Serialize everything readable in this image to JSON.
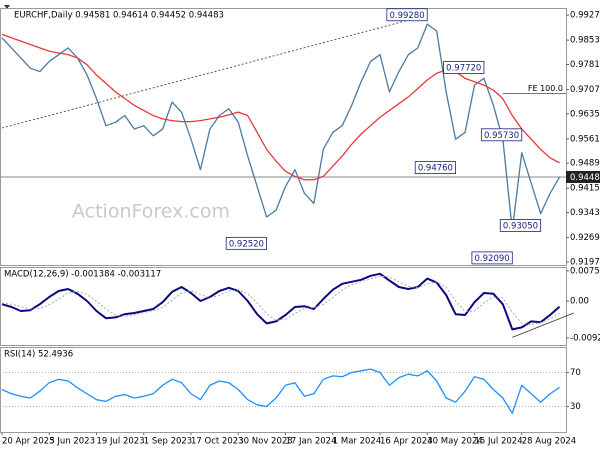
{
  "chart_data": [
    {
      "type": "line",
      "title": "EURCHF,Daily 0.94581 0.94614 0.94452 0.94483",
      "watermark": "ActionForex.com",
      "categories": [
        "20 Apr 2023",
        null,
        null,
        null,
        null,
        "5 Jun 2023",
        null,
        null,
        null,
        null,
        "19 Jul 2023",
        null,
        null,
        null,
        null,
        "1 Sep 2023",
        null,
        null,
        null,
        null,
        "17 Oct 2023",
        null,
        null,
        null,
        null,
        "30 Nov 2023",
        null,
        null,
        null,
        null,
        "17 Jan 2024",
        null,
        null,
        null,
        null,
        "1 Mar 2024",
        null,
        null,
        null,
        null,
        "16 Apr 2024",
        null,
        null,
        null,
        null,
        "30 May 2024",
        null,
        null,
        null,
        null,
        "15 Jul 2024",
        null,
        null,
        null,
        null,
        "28 Aug 2024",
        null,
        null,
        null,
        null
      ],
      "series": [
        {
          "color": "#4a7aa0",
          "values": [
            0.986,
            0.983,
            0.98,
            0.977,
            0.976,
            0.979,
            0.981,
            0.983,
            0.98,
            0.975,
            0.968,
            0.96,
            0.961,
            0.963,
            0.959,
            0.96,
            0.957,
            0.959,
            0.967,
            0.964,
            0.956,
            0.947,
            0.959,
            0.963,
            0.965,
            0.961,
            0.951,
            0.942,
            0.933,
            0.935,
            0.942,
            0.947,
            0.94,
            0.937,
            0.953,
            0.958,
            0.96,
            0.966,
            0.973,
            0.979,
            0.981,
            0.97,
            0.976,
            0.981,
            0.983,
            0.99,
            0.988,
            0.97,
            0.956,
            0.958,
            0.972,
            0.974,
            0.966,
            0.956,
            0.929,
            0.952,
            0.943,
            0.934,
            0.94,
            0.9448
          ]
        },
        {
          "color": "#e8383d",
          "values": [
            0.987,
            0.986,
            0.985,
            0.984,
            0.983,
            0.982,
            0.9815,
            0.981,
            0.98,
            0.978,
            0.975,
            0.9725,
            0.97,
            0.968,
            0.966,
            0.9645,
            0.963,
            0.962,
            0.9615,
            0.9612,
            0.9612,
            0.9615,
            0.962,
            0.9625,
            0.9632,
            0.964,
            0.963,
            0.958,
            0.953,
            0.9495,
            0.9465,
            0.945,
            0.944,
            0.944,
            0.945,
            0.948,
            0.951,
            0.9545,
            0.9575,
            0.96,
            0.9625,
            0.9645,
            0.9665,
            0.9685,
            0.971,
            0.9735,
            0.9755,
            0.9765,
            0.976,
            0.974,
            0.973,
            0.972,
            0.9705,
            0.968,
            0.963,
            0.959,
            0.956,
            0.953,
            0.9505,
            0.949
          ]
        }
      ],
      "ylim": [
        0.9188,
        0.9948
      ],
      "yticks": [
        {
          "value": 0.9927,
          "label": "0.99270"
        },
        {
          "value": 0.9853,
          "label": "0.98530"
        },
        {
          "value": 0.9781,
          "label": "0.97810"
        },
        {
          "value": 0.9707,
          "label": "0.97070"
        },
        {
          "value": 0.9635,
          "label": "0.96350"
        },
        {
          "value": 0.9561,
          "label": "0.95610"
        },
        {
          "value": 0.9489,
          "label": "0.94890"
        },
        {
          "value": 0.9415,
          "label": "0.94150"
        },
        {
          "value": 0.9343,
          "label": "0.93430"
        },
        {
          "value": 0.9269,
          "label": "0.92690"
        },
        {
          "value": 0.9197,
          "label": "0.91970"
        }
      ],
      "grid": false,
      "last_price": 0.94483,
      "annotations": [
        {
          "label": "0.99280",
          "value": 0.9928,
          "x": 45
        },
        {
          "label": "0.97720",
          "value": 0.9772,
          "x": 51
        },
        {
          "label": "0.95730",
          "value": 0.9573,
          "x": 55
        },
        {
          "label": "0.94760",
          "value": 0.9476,
          "x": 48
        },
        {
          "label": "0.93050",
          "value": 0.9305,
          "x": 57
        },
        {
          "label": "0.92520",
          "value": 0.9252,
          "x": 28
        },
        {
          "label": "0.92090",
          "value": 0.9209,
          "x": 54
        }
      ],
      "levels": [
        {
          "label": "FE 100.0",
          "value": 0.9695,
          "x": 53
        }
      ],
      "trendlines": [
        {
          "x": [
            0,
            45
          ],
          "values": [
            0.9593,
            0.9927
          ]
        }
      ]
    },
    {
      "type": "line",
      "title": "MACD(12,26,9) -0.001384 -0.003117",
      "series": [
        {
          "color": "#0a0a80",
          "values": [
            -0.0008,
            -0.0015,
            -0.0025,
            -0.0023,
            -0.0008,
            0.001,
            0.0025,
            0.003,
            0.0018,
            0.0,
            -0.0025,
            -0.0043,
            -0.0041,
            -0.0033,
            -0.003,
            -0.0025,
            -0.002,
            -0.0003,
            0.0023,
            0.0035,
            0.002,
            0.0,
            0.001,
            0.0025,
            0.0033,
            0.0025,
            0.0,
            -0.0033,
            -0.0056,
            -0.0051,
            -0.0035,
            -0.0015,
            -0.0013,
            -0.002,
            0.0005,
            0.0028,
            0.0043,
            0.0048,
            0.0053,
            0.0063,
            0.0068,
            0.0051,
            0.0035,
            0.003,
            0.0035,
            0.0056,
            0.0046,
            0.0015,
            -0.0033,
            -0.0035,
            -0.0003,
            0.002,
            0.0018,
            -0.0008,
            -0.0071,
            -0.0066,
            -0.0051,
            -0.0053,
            -0.0035,
            -0.0014
          ]
        },
        {
          "color": "#a8a8a8",
          "dash": true,
          "values": [
            -0.0005,
            -0.0008,
            -0.0014,
            -0.002,
            -0.0019,
            -0.0009,
            0.0005,
            0.002,
            0.0024,
            0.0016,
            0.0,
            -0.002,
            -0.0035,
            -0.0038,
            -0.0034,
            -0.0029,
            -0.0024,
            -0.0016,
            0.0002,
            0.002,
            0.0026,
            0.0016,
            0.0008,
            0.0014,
            0.0025,
            0.0028,
            0.0018,
            -0.0005,
            -0.0032,
            -0.0048,
            -0.0046,
            -0.0031,
            -0.0019,
            -0.0016,
            -0.0009,
            0.0008,
            0.0028,
            0.0041,
            0.0048,
            0.0055,
            0.0062,
            0.006,
            0.0048,
            0.0037,
            0.0033,
            0.0042,
            0.0048,
            0.0034,
            0.0,
            -0.0026,
            -0.0025,
            -0.0005,
            0.001,
            0.0008,
            -0.0028,
            -0.0056,
            -0.0059,
            -0.0054,
            -0.0045,
            -0.0031
          ]
        }
      ],
      "ylim": [
        -0.011,
        0.0085
      ],
      "yticks": [
        0.007525,
        {
          "value": 0,
          "label": "0.00"
        },
        -0.009252
      ],
      "grid": false,
      "trendlines": [
        {
          "x": [
            54,
            60.5
          ],
          "values": [
            -0.0091,
            -0.003
          ]
        }
      ]
    },
    {
      "type": "line",
      "title": "RSI(14) 52.4936",
      "series": [
        {
          "color": "#1e90ff",
          "values": [
            50,
            45,
            42,
            40,
            48,
            58,
            62,
            60,
            52,
            45,
            38,
            36,
            42,
            44,
            40,
            42,
            45,
            55,
            62,
            58,
            45,
            38,
            55,
            60,
            58,
            50,
            38,
            32,
            30,
            40,
            55,
            58,
            42,
            45,
            62,
            66,
            65,
            70,
            72,
            74,
            70,
            55,
            64,
            68,
            66,
            72,
            60,
            40,
            35,
            48,
            65,
            62,
            50,
            40,
            22,
            55,
            45,
            35,
            45,
            52.5
          ]
        }
      ],
      "ylim": [
        0,
        100
      ],
      "yticks": [
        70,
        30
      ],
      "grid": true
    }
  ]
}
